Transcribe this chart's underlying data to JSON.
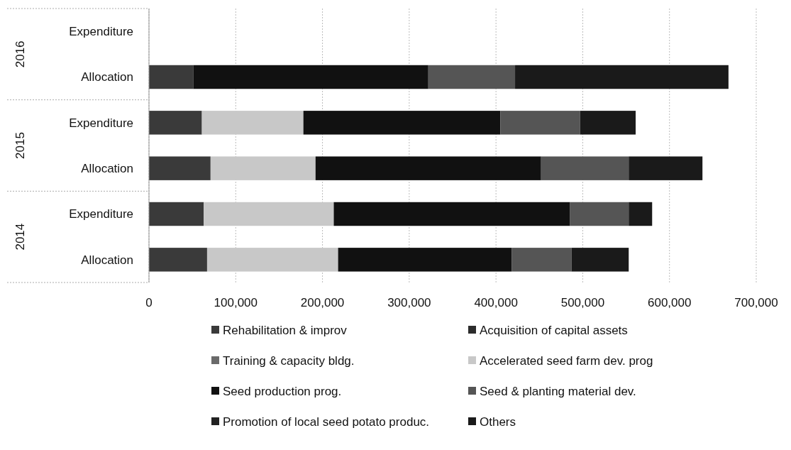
{
  "chart_data": {
    "type": "bar",
    "orientation": "horizontal",
    "stacked": true,
    "categories": [
      "Expenditure",
      "Allocation",
      "Expenditure",
      "Allocation",
      "Expenditure",
      "Allocation"
    ],
    "annotations": [
      "2016",
      "2015",
      "2014"
    ],
    "series": [
      {
        "name": "Rehabilitation & improv",
        "color": "#3a3a3a",
        "values": [
          null,
          51000,
          61000,
          71000,
          63000,
          67000
        ]
      },
      {
        "name": "Acquisition of capital assets",
        "color": "#2c2c2c",
        "values": [
          null,
          0,
          0,
          0,
          0,
          0
        ]
      },
      {
        "name": "Training & capacity bldg.",
        "color": "#6a6a6a",
        "values": [
          null,
          0,
          0,
          0,
          0,
          0
        ]
      },
      {
        "name": "Accelerated seed farm dev. prog",
        "color": "#c8c8c8",
        "values": [
          null,
          0,
          117000,
          121000,
          150000,
          151000
        ]
      },
      {
        "name": "Seed production prog.",
        "color": "#111111",
        "values": [
          null,
          271000,
          227000,
          260000,
          272000,
          200000
        ]
      },
      {
        "name": "Seed & planting material dev.",
        "color": "#555555",
        "values": [
          null,
          100000,
          92000,
          101000,
          68000,
          69000
        ]
      },
      {
        "name": "Promotion of local seed potato produc.",
        "color": "#222222",
        "values": [
          null,
          0,
          0,
          0,
          0,
          0
        ]
      },
      {
        "name": "Others",
        "color": "#1a1a1a",
        "values": [
          null,
          246000,
          64000,
          85000,
          27000,
          66000
        ]
      }
    ],
    "xlim": [
      0,
      700000
    ],
    "xticks": [
      {
        "value": 0,
        "label": "0"
      },
      {
        "value": 100000,
        "label": "100,000"
      },
      {
        "value": 200000,
        "label": "200,000"
      },
      {
        "value": 300000,
        "label": "300,000"
      },
      {
        "value": 400000,
        "label": "400,000"
      },
      {
        "value": 500000,
        "label": "500,000"
      },
      {
        "value": 600000,
        "label": "600,000"
      },
      {
        "value": 700000,
        "label": "700,000"
      }
    ],
    "grid": "x",
    "legend": "bottom"
  }
}
